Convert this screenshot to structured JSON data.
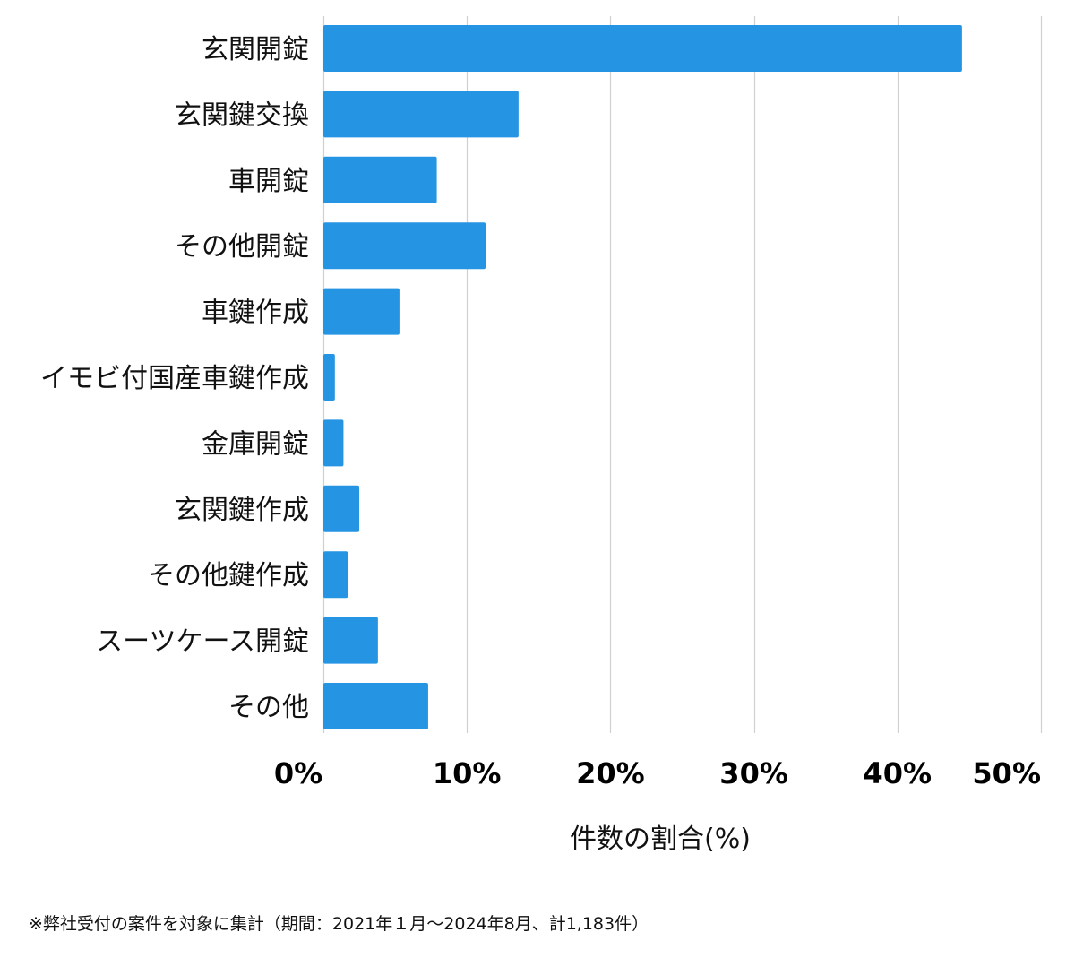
{
  "chart_data": {
    "type": "bar",
    "orientation": "horizontal",
    "categories": [
      "玄関開錠",
      "玄関鍵交換",
      "車開錠",
      "その他開錠",
      "車鍵作成",
      "イモビ付国産車鍵作成",
      "金庫開錠",
      "玄関鍵作成",
      "その他鍵作成",
      "スーツケース開錠",
      "その他"
    ],
    "values": [
      44.5,
      13.6,
      7.9,
      11.3,
      5.3,
      0.8,
      1.4,
      2.5,
      1.7,
      3.8,
      7.3
    ],
    "xlim": [
      0,
      50
    ],
    "xticks": [
      0,
      10,
      20,
      30,
      40,
      50
    ],
    "xtick_labels": [
      "0%",
      "10%",
      "20%",
      "30%",
      "40%",
      "50%"
    ],
    "xlabel": "件数の割合(%)",
    "ylabel": "",
    "title": "",
    "grid": "vertical",
    "bar_color": "#2594e3",
    "grid_color": "#d0d0d0"
  },
  "footnote": "※弊社受付の案件を対象に集計（期間：2021年１月〜2024年8月、計1,183件）"
}
